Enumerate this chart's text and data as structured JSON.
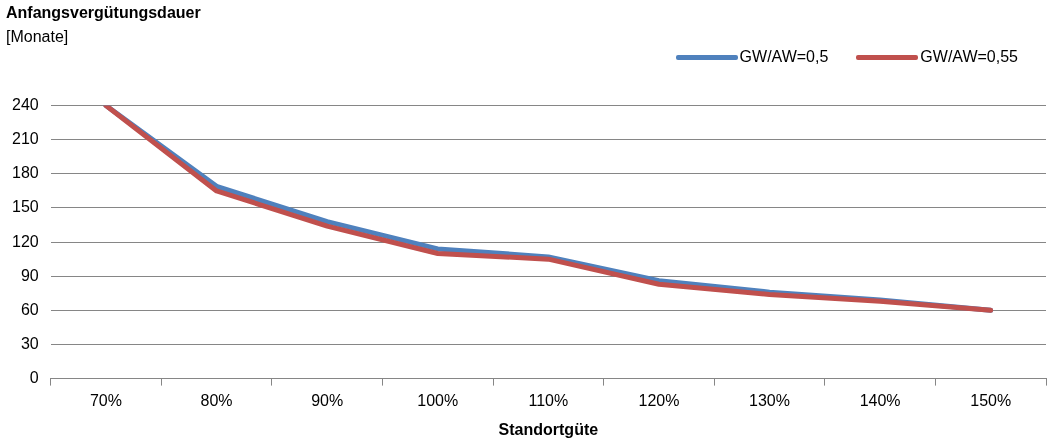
{
  "chart_data": {
    "type": "line",
    "title": "Anfangsvergütungsdauer",
    "ylabel": "[Monate]",
    "xlabel": "Standortgüte",
    "categories": [
      "70%",
      "80%",
      "90%",
      "100%",
      "110%",
      "120%",
      "130%",
      "140%",
      "150%"
    ],
    "series": [
      {
        "name": "GW/AW=0,5",
        "color": "#4f81bd",
        "values": [
          240,
          169,
          138,
          114,
          107,
          86,
          76,
          69,
          60
        ]
      },
      {
        "name": "GW/AW=0,55",
        "color": "#c0504d",
        "values": [
          240,
          165,
          134,
          110,
          105,
          83,
          74,
          68,
          60
        ]
      }
    ],
    "ylim": [
      0,
      240
    ],
    "yticks": [
      0,
      30,
      60,
      90,
      120,
      150,
      180,
      210,
      240
    ],
    "grid": "y",
    "legend": "top right",
    "marker": "none",
    "line_style": "solid"
  }
}
